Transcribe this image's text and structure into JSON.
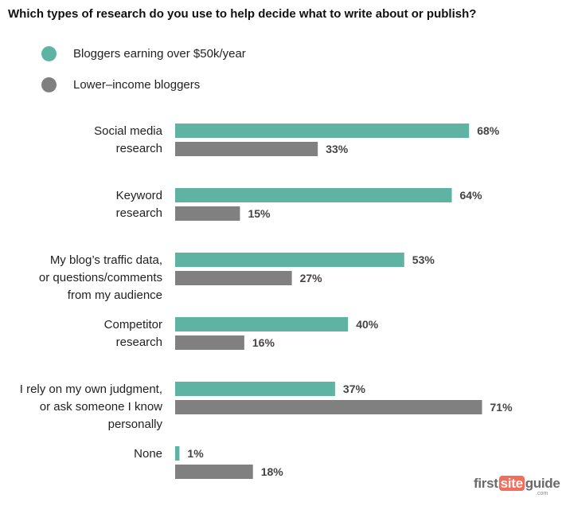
{
  "chart_data": {
    "type": "bar",
    "orientation": "horizontal",
    "title": "Which types of research do you use to help decide what to write about or publish?",
    "categories": [
      [
        "Social media",
        "research"
      ],
      [
        "Keyword",
        "research"
      ],
      [
        "My blog’s traffic data,",
        "or questions/comments",
        "from my audience"
      ],
      [
        "Competitor",
        "research"
      ],
      [
        "I rely on my own judgment,",
        "or ask someone I know",
        "personally"
      ],
      [
        "None"
      ]
    ],
    "series": [
      {
        "name": "Bloggers earning over $50k/year",
        "color": "#5fb3a3",
        "values": [
          68,
          64,
          53,
          40,
          37,
          1
        ],
        "labels": [
          "68%",
          "64%",
          "53%",
          "40%",
          "37%",
          "1%"
        ]
      },
      {
        "name": "Lower–income bloggers",
        "color": "#808080",
        "values": [
          33,
          15,
          27,
          16,
          71,
          18
        ],
        "labels": [
          "33%",
          "15%",
          "27%",
          "16%",
          "71%",
          "18%"
        ]
      }
    ],
    "value_unit": "%",
    "xlim": [
      0,
      100
    ],
    "grid": false,
    "legend_position": "top-left"
  },
  "logo": {
    "first": "first",
    "site": "site",
    "guide": "guide",
    "com": ".com"
  }
}
